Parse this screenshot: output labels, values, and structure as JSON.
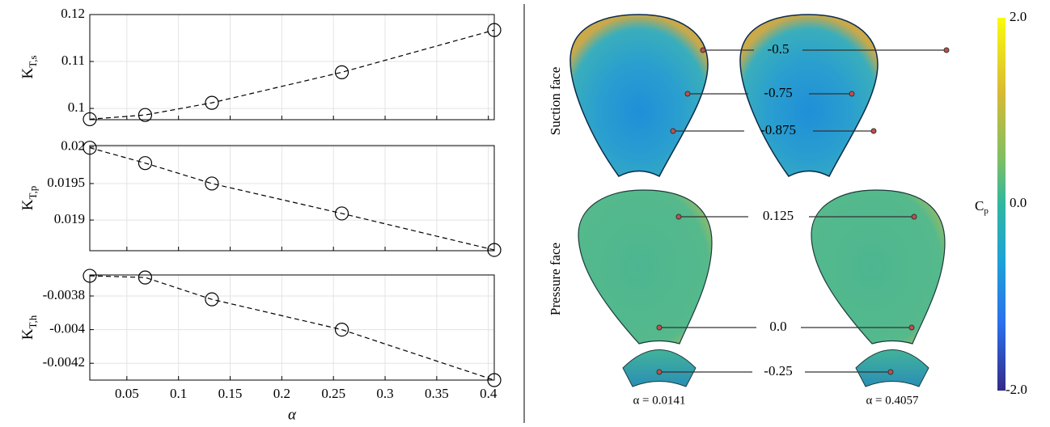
{
  "chart_data": [
    {
      "type": "line",
      "ylabel": {
        "main": "K",
        "sub": "T,s"
      },
      "x": [
        0.0141,
        0.0677,
        0.1323,
        0.2581,
        0.4057
      ],
      "values": [
        0.0977,
        0.0986,
        0.1012,
        0.1077,
        0.1167
      ],
      "xlim": [
        0.0141,
        0.4057
      ],
      "xticks": [
        0.05,
        0.1,
        0.15,
        0.2,
        0.25,
        0.3,
        0.35,
        0.4
      ],
      "ylim": [
        0.0976,
        0.12
      ],
      "yticks": [
        0.1,
        0.11,
        0.12
      ],
      "grid": true,
      "color": "#000000"
    },
    {
      "type": "line",
      "ylabel": {
        "main": "K",
        "sub": "T,p"
      },
      "x": [
        0.0141,
        0.0677,
        0.1323,
        0.2581,
        0.4057
      ],
      "values": [
        0.01999,
        0.01978,
        0.0195,
        0.01909,
        0.01859
      ],
      "xlim": [
        0.0141,
        0.4057
      ],
      "xticks": [
        0.05,
        0.1,
        0.15,
        0.2,
        0.25,
        0.3,
        0.35,
        0.4
      ],
      "ylim": [
        0.01858,
        0.02002
      ],
      "yticks": [
        0.019,
        0.0195,
        0.02
      ],
      "grid": true,
      "color": "#000000"
    },
    {
      "type": "line",
      "ylabel": {
        "main": "K",
        "sub": "T,h"
      },
      "xlabel": "α",
      "x": [
        0.0141,
        0.0677,
        0.1323,
        0.2581,
        0.4057
      ],
      "values": [
        -0.00368,
        -0.00369,
        -0.00382,
        -0.004,
        -0.0043
      ],
      "xlim": [
        0.0141,
        0.4057
      ],
      "xticks": [
        0.05,
        0.1,
        0.15,
        0.2,
        0.25,
        0.3,
        0.35,
        0.4
      ],
      "ylim": [
        -0.0043,
        -0.003675
      ],
      "yticks": [
        -0.0042,
        -0.004,
        -0.0038
      ],
      "grid": true,
      "color": "#000000"
    }
  ],
  "propeller_figure": {
    "faces": [
      "Suction face",
      "Pressure face"
    ],
    "contour_labels": [
      "-0.5",
      "-0.75",
      "-0.875",
      "0.125",
      "0.0",
      "-0.25"
    ],
    "captions": [
      "α = 0.0141",
      "α = 0.4057"
    ],
    "colorbar": {
      "label": "C",
      "label_sub": "p",
      "ticks": [
        "2.0",
        "0.0",
        "-2.0"
      ]
    }
  }
}
